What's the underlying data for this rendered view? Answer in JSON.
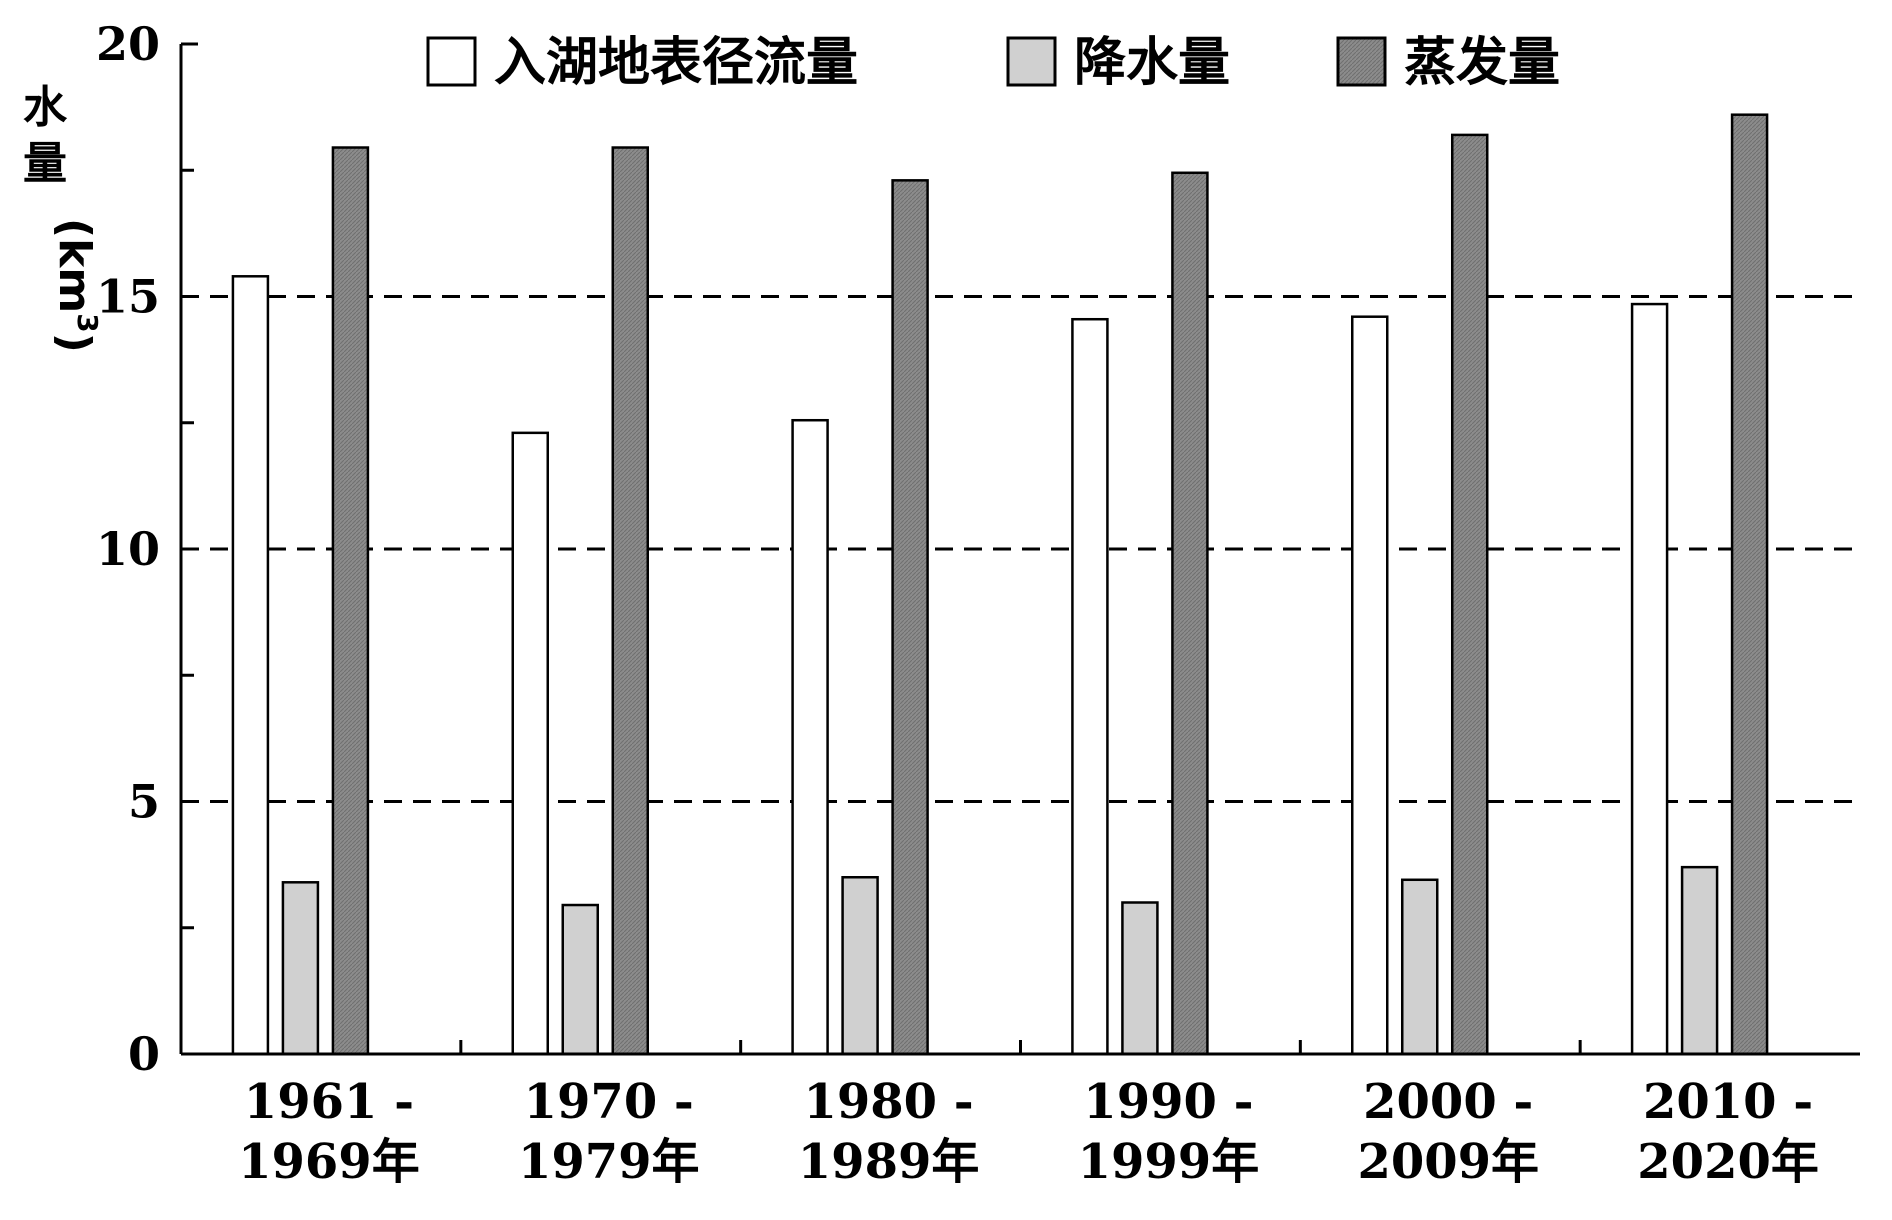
{
  "chart_data": {
    "type": "bar",
    "ylabel_chars": [
      "水",
      "量"
    ],
    "ylabel_unit": "(km",
    "ylabel_sup": "3",
    "ylabel_close": ")",
    "ylim": [
      0,
      20
    ],
    "yticks": [
      0,
      5,
      10,
      15,
      20
    ],
    "grid": "dashed at 5, 10, 15",
    "legend_position": "top",
    "categories": [
      [
        "1961 -",
        "1969年"
      ],
      [
        "1970 -",
        "1979年"
      ],
      [
        "1980 -",
        "1989年"
      ],
      [
        "1990 -",
        "1999年"
      ],
      [
        "2000 -",
        "2009年"
      ],
      [
        "2010 -",
        "2020年"
      ]
    ],
    "series": [
      {
        "name": "入湖地表径流量",
        "color": "#ffffff",
        "values": [
          15.4,
          12.3,
          12.55,
          14.55,
          14.6,
          14.85
        ]
      },
      {
        "name": "降水量",
        "color": "#d0d0d0",
        "values": [
          3.4,
          2.95,
          3.5,
          3.0,
          3.45,
          3.7
        ]
      },
      {
        "name": "蒸发量",
        "color": "#8c8c8c",
        "values": [
          17.95,
          17.95,
          17.3,
          17.45,
          18.2,
          18.6
        ]
      }
    ]
  }
}
